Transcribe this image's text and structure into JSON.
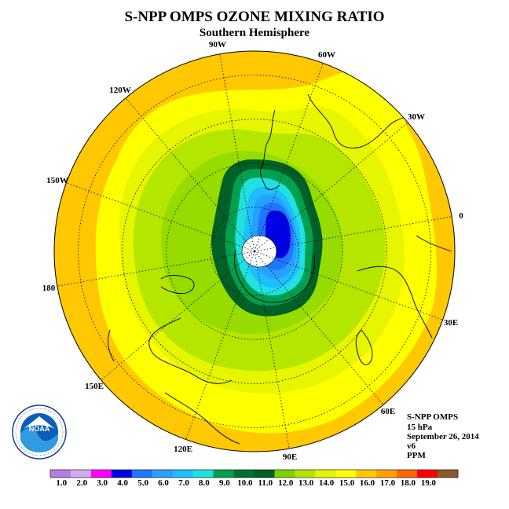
{
  "title": "S-NPP OMPS OZONE MIXING RATIO",
  "subtitle": "Southern Hemisphere",
  "longitude_labels": [
    "90W",
    "60W",
    "30W",
    "0",
    "30E",
    "60E",
    "90E",
    "120E",
    "150E",
    "180",
    "150W",
    "120W"
  ],
  "info": {
    "instrument": "S-NPP OMPS",
    "level": "15 hPa",
    "date": "September 26, 2014",
    "version": "v6",
    "units": "PPM"
  },
  "logo_text": "NOAA",
  "colorbar": {
    "ticks": [
      "1.0",
      "2.0",
      "3.0",
      "4.0",
      "5.0",
      "6.0",
      "7.0",
      "8.0",
      "9.0",
      "10.0",
      "11.0",
      "12.0",
      "13.0",
      "14.0",
      "15.0",
      "16.0",
      "17.0",
      "18.0",
      "19.0"
    ],
    "colors": [
      "#b57fe0",
      "#d6a9ef",
      "#ff00ff",
      "#0000e6",
      "#1e78ff",
      "#28a0ff",
      "#1ebeff",
      "#20e0e0",
      "#00a050",
      "#007030",
      "#006026",
      "#80d000",
      "#b4e600",
      "#e6f500",
      "#ffff00",
      "#ffc800",
      "#ffa000",
      "#ff6400",
      "#ff0000",
      "#8b5a2b"
    ]
  },
  "map_colors": {
    "band_15_16": "#ffc800",
    "band_14_15": "#ffff00",
    "band_13_14": "#e6f500",
    "band_12_13": "#b4e600",
    "band_11_12": "#96dc00",
    "band_10_11": "#006026",
    "band_9_10": "#00a050",
    "band_8_9": "#20e0e0",
    "band_7_8": "#1ebeff",
    "band_6_7": "#28a0ff",
    "band_5_6": "#1e78ff",
    "band_4_5": "#0000e6"
  }
}
